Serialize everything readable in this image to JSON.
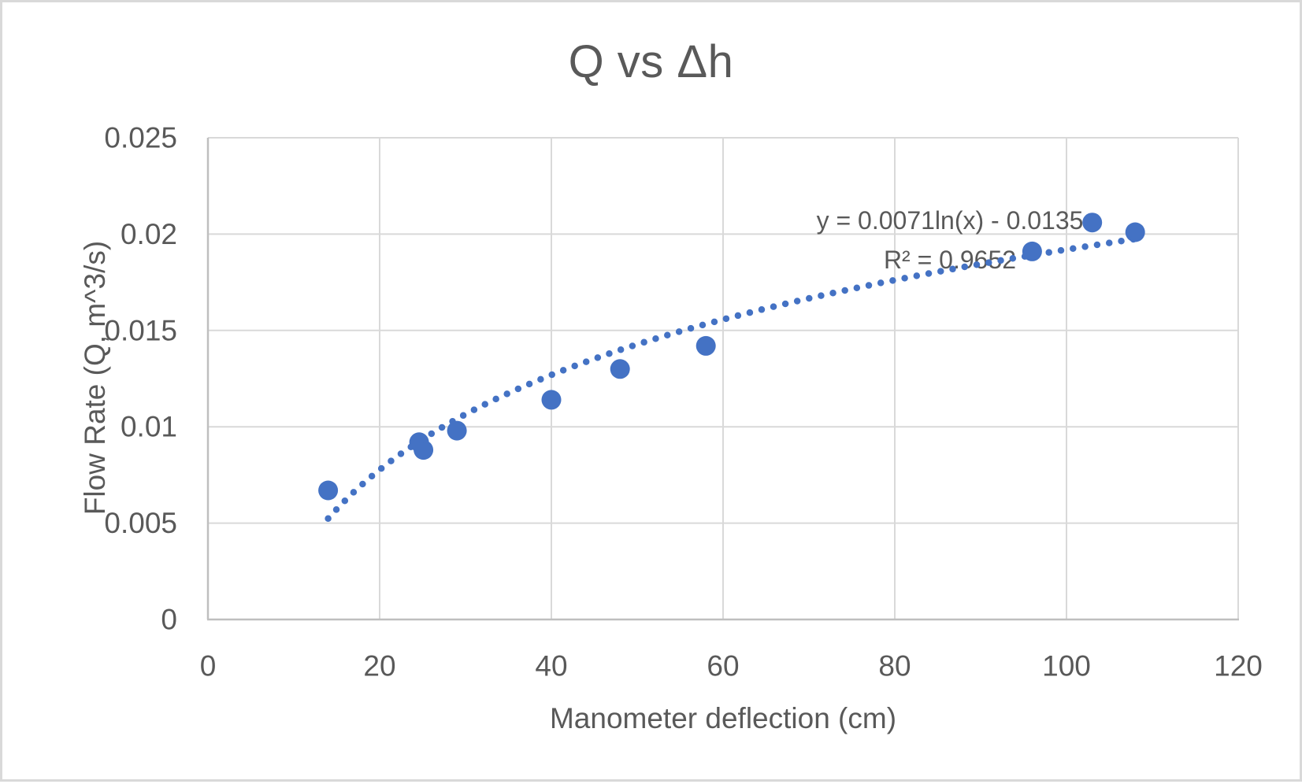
{
  "chart_data": {
    "type": "scatter",
    "title": "Q vs Δh",
    "xlabel": "Manometer deflection (cm)",
    "ylabel": "Flow Rate (Q, m^3/s)",
    "xlim": [
      0,
      120
    ],
    "ylim": [
      0,
      0.025
    ],
    "x_ticks": [
      0,
      20,
      40,
      60,
      80,
      100,
      120
    ],
    "y_ticks": [
      0,
      0.005,
      0.01,
      0.015,
      0.02,
      0.025
    ],
    "y_tick_labels": [
      "0",
      "0.005",
      "0.01",
      "0.015",
      "0.02",
      "0.025"
    ],
    "grid": true,
    "legend_position": "none",
    "series": [
      {
        "name": "Q vs Δh",
        "marker": "circle",
        "points": [
          [
            14,
            0.0067
          ],
          [
            24.6,
            0.0092
          ],
          [
            25.1,
            0.0088
          ],
          [
            29,
            0.0098
          ],
          [
            40,
            0.0114
          ],
          [
            48,
            0.013
          ],
          [
            58,
            0.0142
          ],
          [
            96,
            0.0191
          ],
          [
            103,
            0.0206
          ],
          [
            108,
            0.0201
          ]
        ]
      }
    ],
    "trendline": {
      "type": "logarithmic",
      "coefficients": {
        "a": 0.0071,
        "b": -0.0135
      },
      "x_start": 14,
      "x_end": 108.5,
      "style": "dotted",
      "equation_label": "y = 0.0071ln(x) - 0.0135",
      "r_squared_label": "R² = 0.9652"
    },
    "colors": {
      "marker": "#4472C4",
      "trendline": "#4472C4",
      "text": "#595959",
      "gridline": "#D9D9D9",
      "axis_line": "#BFBFBF",
      "frame_border": "#D9D9D9",
      "background": "#FFFFFF"
    }
  }
}
